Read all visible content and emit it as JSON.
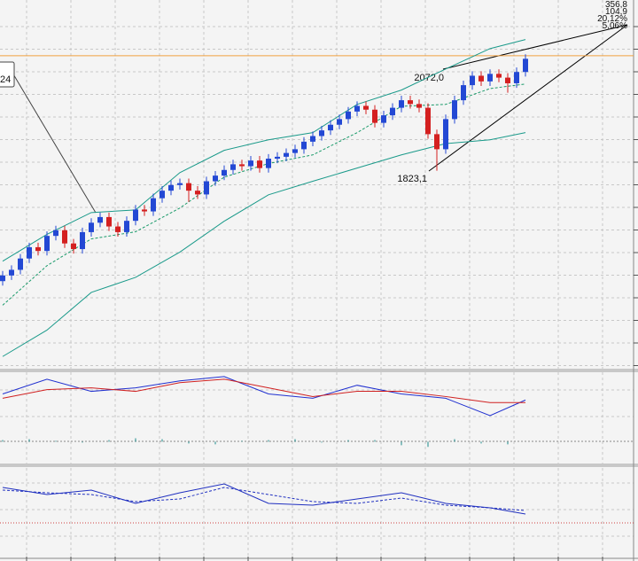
{
  "chart_data": {
    "type": "candlestick",
    "ylim": [
      1300,
      2276
    ],
    "level": 2128,
    "up_color": "#2348d4",
    "down_color": "#d42020",
    "open": [
      1530,
      1545,
      1560,
      1590,
      1620,
      1610,
      1650,
      1665,
      1630,
      1615,
      1660,
      1685,
      1700,
      1675,
      1660,
      1690,
      1720,
      1715,
      1750,
      1770,
      1785,
      1790,
      1770,
      1760,
      1795,
      1810,
      1825,
      1840,
      1835,
      1850,
      1830,
      1855,
      1860,
      1870,
      1880,
      1900,
      1915,
      1930,
      1945,
      1960,
      1980,
      1995,
      1985,
      1950,
      1970,
      1990,
      2010,
      2000,
      1990,
      1920,
      1880,
      1960,
      2010,
      2050,
      2075,
      2060,
      2080,
      2070,
      2055,
      2085
    ],
    "close": [
      1545,
      1560,
      1590,
      1620,
      1610,
      1650,
      1665,
      1630,
      1615,
      1660,
      1685,
      1700,
      1675,
      1660,
      1690,
      1720,
      1715,
      1750,
      1770,
      1785,
      1790,
      1770,
      1760,
      1795,
      1810,
      1825,
      1840,
      1835,
      1850,
      1830,
      1855,
      1860,
      1870,
      1880,
      1900,
      1915,
      1930,
      1945,
      1960,
      1980,
      1995,
      1985,
      1950,
      1970,
      1990,
      2010,
      2000,
      1990,
      1920,
      1880,
      1960,
      2010,
      2050,
      2075,
      2060,
      2080,
      2070,
      2055,
      2085,
      2120
    ],
    "high": [
      1557,
      1572,
      1602,
      1632,
      1632,
      1662,
      1677,
      1677,
      1642,
      1672,
      1697,
      1712,
      1712,
      1687,
      1702,
      1732,
      1732,
      1762,
      1782,
      1797,
      1802,
      1802,
      1782,
      1807,
      1822,
      1837,
      1852,
      1852,
      1862,
      1862,
      1867,
      1872,
      1882,
      1892,
      1912,
      1927,
      1942,
      1957,
      1972,
      1992,
      2007,
      2007,
      1997,
      1982,
      2002,
      2022,
      2022,
      2012,
      2002,
      1932,
      1972,
      2022,
      2062,
      2087,
      2087,
      2092,
      2092,
      2082,
      2097,
      2132
    ],
    "low": [
      1518,
      1533,
      1548,
      1578,
      1598,
      1598,
      1638,
      1618,
      1603,
      1603,
      1648,
      1673,
      1663,
      1648,
      1648,
      1678,
      1703,
      1703,
      1738,
      1758,
      1773,
      1740,
      1748,
      1748,
      1783,
      1798,
      1813,
      1823,
      1823,
      1818,
      1818,
      1843,
      1848,
      1858,
      1868,
      1888,
      1903,
      1918,
      1933,
      1948,
      1968,
      1973,
      1938,
      1938,
      1958,
      1978,
      1988,
      1978,
      1908,
      1823.1,
      1868,
      1948,
      1998,
      2038,
      2048,
      2048,
      2058,
      2030,
      2043,
      2073
    ],
    "bands": {
      "x": [
        0,
        5,
        10,
        15,
        20,
        25,
        30,
        35,
        40,
        45,
        50,
        55,
        59
      ],
      "upper": [
        1583,
        1654,
        1712,
        1719,
        1818,
        1877,
        1905,
        1924,
        1999,
        2037,
        2093,
        2147,
        2171
      ],
      "mid": [
        1466,
        1571,
        1642,
        1661,
        1724,
        1806,
        1842,
        1865,
        1924,
        1994,
        1999,
        2041,
        2053
      ],
      "lower": [
        1330,
        1400,
        1500,
        1540,
        1607,
        1689,
        1759,
        1795,
        1830,
        1865,
        1895,
        1905,
        1924
      ]
    },
    "annotations": {
      "high_label": "2072,0",
      "low_label": "1823,1",
      "callout": "24",
      "info": [
        "356,8",
        "104,9",
        "20,12%",
        "5,06%"
      ]
    },
    "macd": {
      "ylim": [
        -20,
        80
      ],
      "x": [
        0,
        5,
        10,
        15,
        20,
        25,
        30,
        35,
        40,
        45,
        50,
        55,
        59
      ],
      "main": [
        55,
        72,
        58,
        62,
        70,
        75,
        55,
        50,
        65,
        55,
        50,
        30,
        48
      ],
      "signal": [
        50,
        60,
        62,
        58,
        68,
        72,
        62,
        52,
        58,
        58,
        52,
        45,
        45
      ],
      "hist_x": [
        0,
        3,
        6,
        9,
        12,
        15,
        18,
        21,
        24,
        27,
        30,
        33,
        36,
        39,
        42,
        45,
        48,
        51,
        54,
        57
      ],
      "hist": [
        2,
        3,
        1,
        -1,
        2,
        4,
        3,
        -2,
        -3,
        1,
        2,
        3,
        -1,
        2,
        2,
        -4,
        -6,
        3,
        -2,
        -3
      ]
    },
    "stoch": {
      "ylim": [
        0,
        100
      ],
      "x": [
        0,
        5,
        10,
        15,
        20,
        25,
        30,
        35,
        40,
        45,
        50,
        55,
        59
      ],
      "main": [
        78,
        70,
        75,
        60,
        72,
        82,
        60,
        58,
        65,
        72,
        60,
        55,
        48
      ],
      "signal": [
        75,
        72,
        70,
        62,
        65,
        78,
        70,
        62,
        60,
        66,
        58,
        55,
        52
      ]
    }
  }
}
